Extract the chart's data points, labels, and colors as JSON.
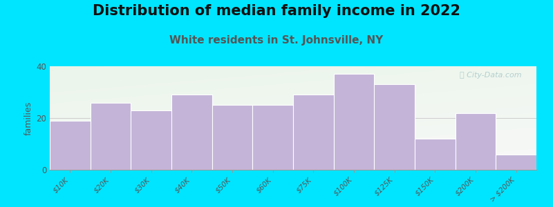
{
  "title": "Distribution of median family income in 2022",
  "subtitle": "White residents in St. Johnsville, NY",
  "ylabel": "families",
  "categories": [
    "$10K",
    "$20K",
    "$30K",
    "$40K",
    "$50K",
    "$60K",
    "$75K",
    "$100K",
    "$125K",
    "$150K",
    "$200K",
    "> $200K"
  ],
  "values": [
    19,
    26,
    23,
    29,
    25,
    25,
    29,
    37,
    33,
    12,
    22,
    6
  ],
  "bar_color": "#c3b4d8",
  "bar_edge_color": "#ffffff",
  "background_outer": "#00e5ff",
  "background_plot_topleft": "#deeede",
  "background_plot_white": "#f8f8f8",
  "title_fontsize": 15,
  "subtitle_fontsize": 11,
  "subtitle_color": "#555555",
  "ylabel_fontsize": 9,
  "tick_fontsize": 7.5,
  "ylim": [
    0,
    40
  ],
  "yticks": [
    0,
    20,
    40
  ],
  "watermark": "ⓘ City-Data.com",
  "watermark_color": "#aac8c8"
}
